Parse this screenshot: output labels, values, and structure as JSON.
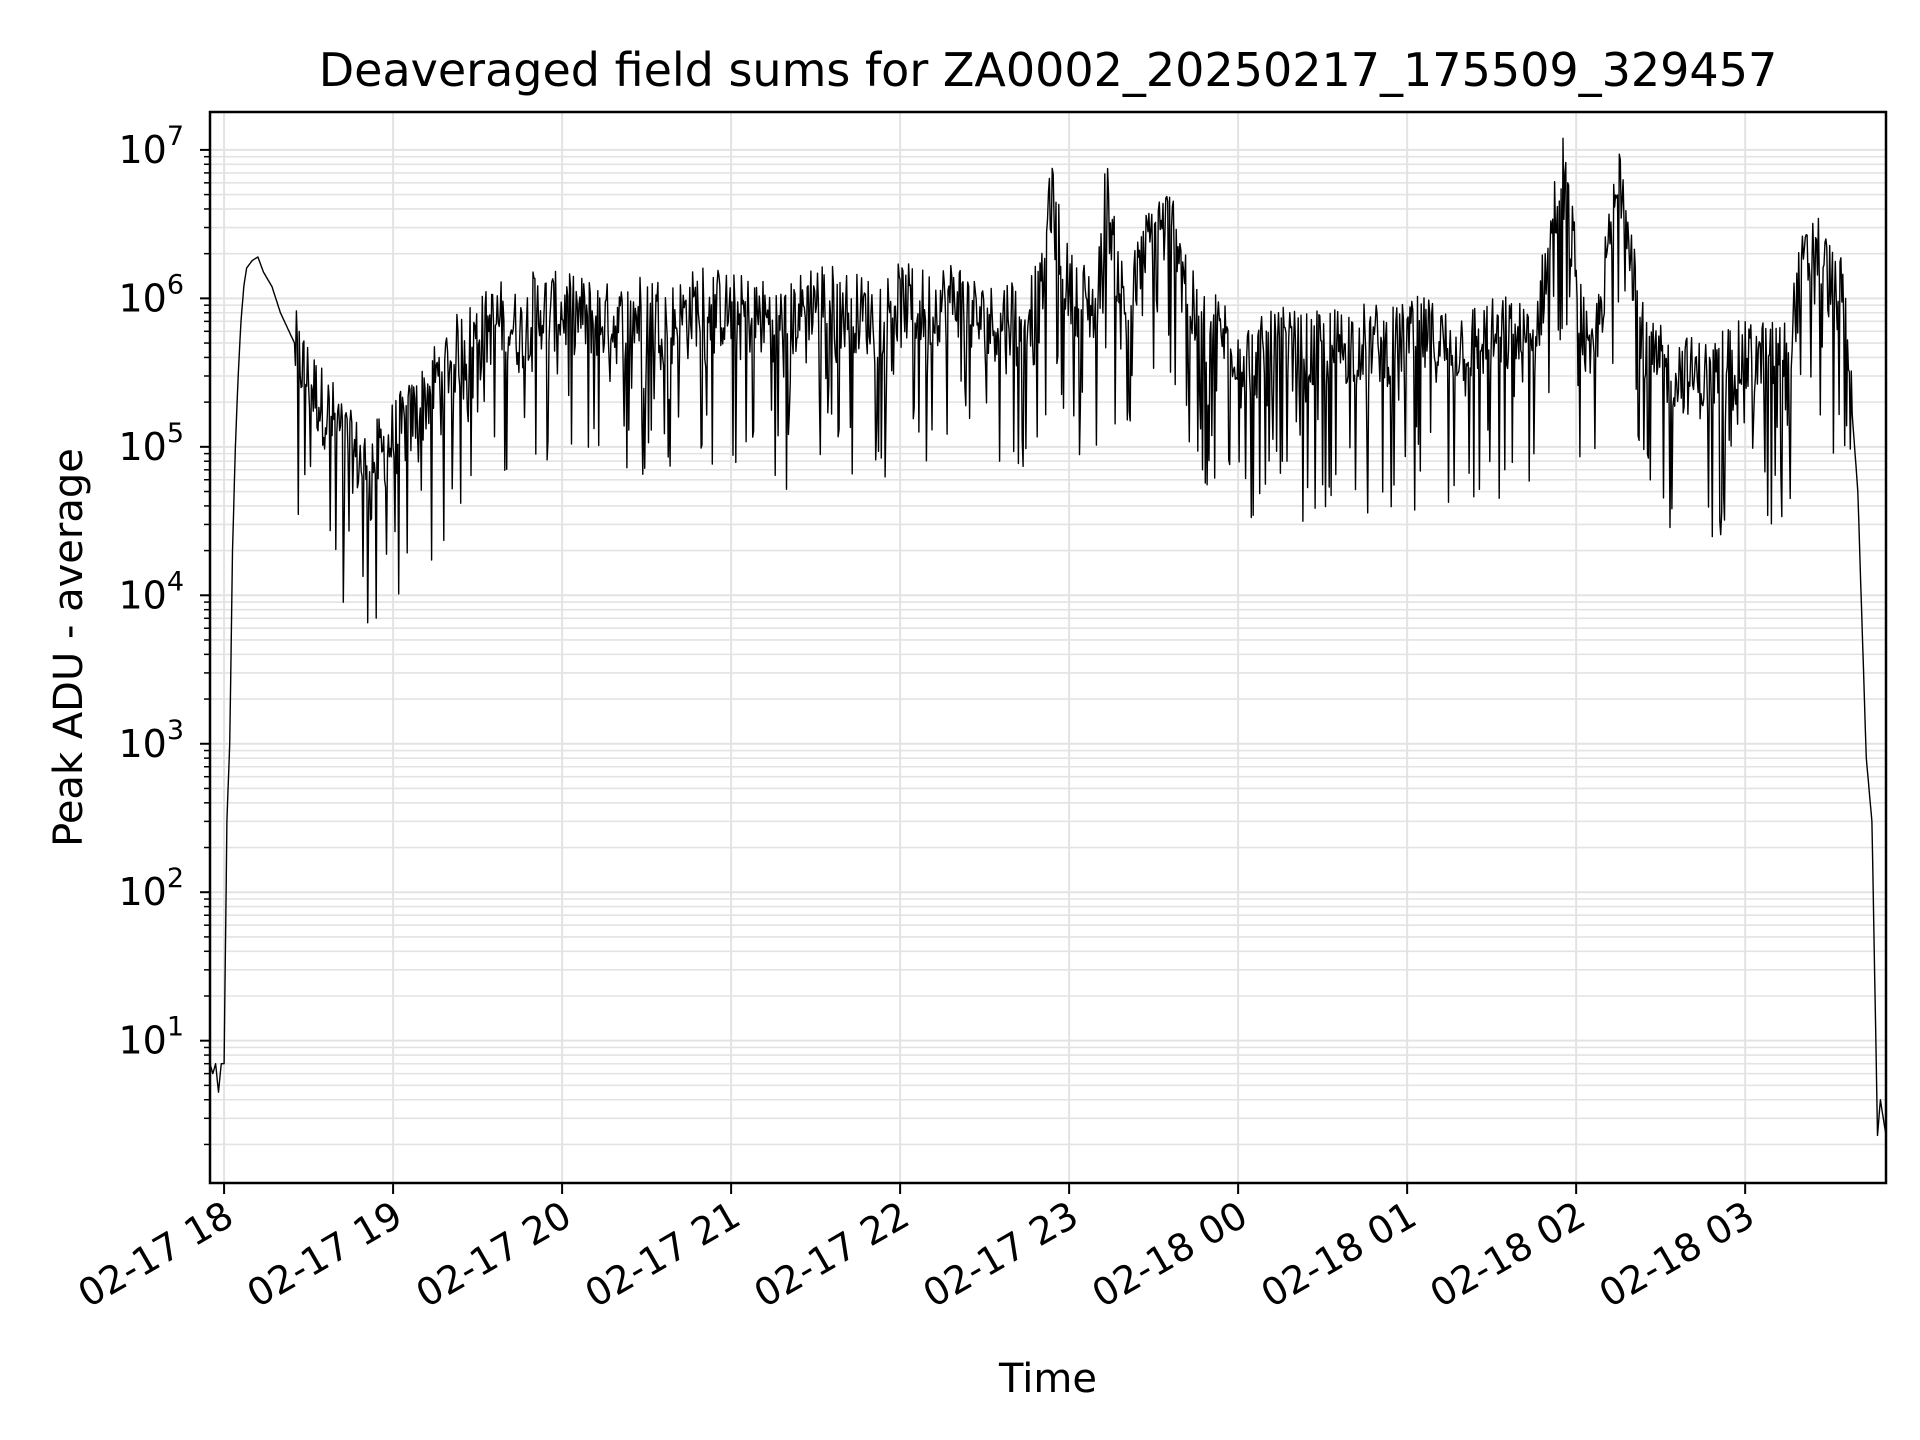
{
  "chart_data": {
    "type": "line",
    "title": "Deaveraged field sums for ZA0002_20250217_175509_329457",
    "xlabel": "Time",
    "ylabel": "Peak ADU - average",
    "yscale": "log",
    "ylim": [
      1.1,
      18000000
    ],
    "xlim": [
      "02-17 17:55",
      "02-18 03:50"
    ],
    "grid": "major and minor, light gray",
    "line_color": "#000000",
    "x_ticks": [
      "02-17 18",
      "02-17 19",
      "02-17 20",
      "02-17 21",
      "02-17 22",
      "02-17 23",
      "02-18 00",
      "02-18 01",
      "02-18 02",
      "02-18 03"
    ],
    "y_ticks": [
      {
        "value": 10,
        "base": "10",
        "exp": "1"
      },
      {
        "value": 100,
        "base": "10",
        "exp": "2"
      },
      {
        "value": 1000,
        "base": "10",
        "exp": "3"
      },
      {
        "value": 10000,
        "base": "10",
        "exp": "4"
      },
      {
        "value": 100000,
        "base": "10",
        "exp": "5"
      },
      {
        "value": 1000000,
        "base": "10",
        "exp": "6"
      },
      {
        "value": 10000000,
        "base": "10",
        "exp": "7"
      }
    ],
    "series": [
      {
        "x": [
          "02-17 17:55",
          "02-17 17:56",
          "02-17 17:57",
          "02-17 17:58",
          "02-17 17:59",
          "02-17 18:00",
          "02-17 18:01",
          "02-17 18:02",
          "02-17 18:03",
          "02-17 18:04",
          "02-17 18:05",
          "02-17 18:06",
          "02-17 18:07",
          "02-17 18:08",
          "02-17 18:10",
          "02-17 18:12",
          "02-17 18:14",
          "02-17 18:17",
          "02-17 18:20",
          "02-17 18:25",
          "02-17 18:30",
          "02-17 18:35",
          "02-17 18:40",
          "02-17 18:45",
          "02-17 18:50",
          "02-17 18:55",
          "02-17 19:00",
          "02-17 19:05",
          "02-17 19:10",
          "02-17 19:15",
          "02-17 19:20",
          "02-17 19:25",
          "02-17 19:30",
          "02-17 19:35",
          "02-17 19:40",
          "02-17 19:45",
          "02-17 19:50",
          "02-17 20:00",
          "02-17 20:10",
          "02-17 20:20",
          "02-17 20:30",
          "02-17 20:40",
          "02-17 20:50",
          "02-17 21:00",
          "02-17 21:10",
          "02-17 21:20",
          "02-17 21:30",
          "02-17 21:40",
          "02-17 21:50",
          "02-17 22:00",
          "02-17 22:10",
          "02-17 22:20",
          "02-17 22:30",
          "02-17 22:40",
          "02-17 22:50",
          "02-17 22:53",
          "02-17 23:00",
          "02-17 23:10",
          "02-17 23:13",
          "02-17 23:20",
          "02-17 23:30",
          "02-17 23:38",
          "02-17 23:45",
          "02-17 23:55",
          "02-18 00:05",
          "02-18 00:15",
          "02-18 00:25",
          "02-18 00:35",
          "02-18 00:45",
          "02-18 00:55",
          "02-18 01:05",
          "02-18 01:15",
          "02-18 01:25",
          "02-18 01:35",
          "02-18 01:45",
          "02-18 01:55",
          "02-18 02:05",
          "02-18 02:16",
          "02-18 02:25",
          "02-18 02:35",
          "02-18 02:45",
          "02-18 02:55",
          "02-18 03:05",
          "02-18 03:15",
          "02-18 03:20",
          "02-18 03:25",
          "02-18 03:30",
          "02-18 03:35",
          "02-18 03:40",
          "02-18 03:43",
          "02-18 03:45",
          "02-18 03:47",
          "02-18 03:48",
          "02-18 03:50"
        ],
        "y": [
          7,
          6,
          7,
          4.5,
          7,
          7,
          300,
          1000,
          20000,
          100000,
          300000,
          700000,
          1200000,
          1600000,
          1800000,
          1900000,
          1500000,
          1200000,
          800000,
          500000,
          300000,
          200000,
          150000,
          100000,
          80000,
          90000,
          120000,
          150000,
          200000,
          300000,
          400000,
          500000,
          600000,
          700000,
          800000,
          600000,
          900000,
          850000,
          800000,
          700000,
          900000,
          750000,
          1000000,
          850000,
          800000,
          700000,
          1100000,
          900000,
          800000,
          1000000,
          900000,
          1100000,
          700000,
          850000,
          1000000,
          5500000,
          1200000,
          900000,
          5500000,
          800000,
          3200000,
          3200000,
          700000,
          600000,
          400000,
          500000,
          450000,
          500000,
          550000,
          500000,
          600000,
          500000,
          550000,
          600000,
          500000,
          8500000,
          300000,
          8500000,
          400000,
          350000,
          300000,
          400000,
          400000,
          500000,
          1500000,
          2500000,
          1400000,
          1000000,
          50000,
          800,
          300,
          2.3,
          4,
          2.3
        ]
      }
    ]
  }
}
